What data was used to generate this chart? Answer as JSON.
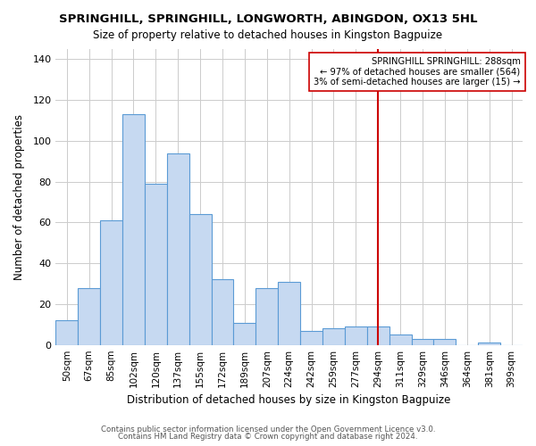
{
  "title": "SPRINGHILL, SPRINGHILL, LONGWORTH, ABINGDON, OX13 5HL",
  "subtitle": "Size of property relative to detached houses in Kingston Bagpuize",
  "xlabel": "Distribution of detached houses by size in Kingston Bagpuize",
  "ylabel": "Number of detached properties",
  "bin_labels": [
    "50sqm",
    "67sqm",
    "85sqm",
    "102sqm",
    "120sqm",
    "137sqm",
    "155sqm",
    "172sqm",
    "189sqm",
    "207sqm",
    "224sqm",
    "242sqm",
    "259sqm",
    "277sqm",
    "294sqm",
    "311sqm",
    "329sqm",
    "346sqm",
    "364sqm",
    "381sqm",
    "399sqm"
  ],
  "bar_heights": [
    12,
    28,
    61,
    113,
    79,
    94,
    64,
    32,
    11,
    28,
    31,
    7,
    8,
    9,
    9,
    5,
    3,
    3,
    0,
    1,
    0
  ],
  "bar_color": "#c6d9f1",
  "bar_edge_color": "#5b9bd5",
  "vline_x_index": 14,
  "vline_color": "#cc0000",
  "annotation_text": "SPRINGHILL SPRINGHILL: 288sqm\n← 97% of detached houses are smaller (564)\n3% of semi-detached houses are larger (15) →",
  "annotation_box_color": "#ffffff",
  "annotation_box_edge": "#cc0000",
  "ylim": [
    0,
    145
  ],
  "yticks": [
    0,
    20,
    40,
    60,
    80,
    100,
    120,
    140
  ],
  "footer1": "Contains HM Land Registry data © Crown copyright and database right 2024.",
  "footer2": "Contains public sector information licensed under the Open Government Licence v3.0.",
  "background_color": "#ffffff",
  "grid_color": "#cccccc"
}
